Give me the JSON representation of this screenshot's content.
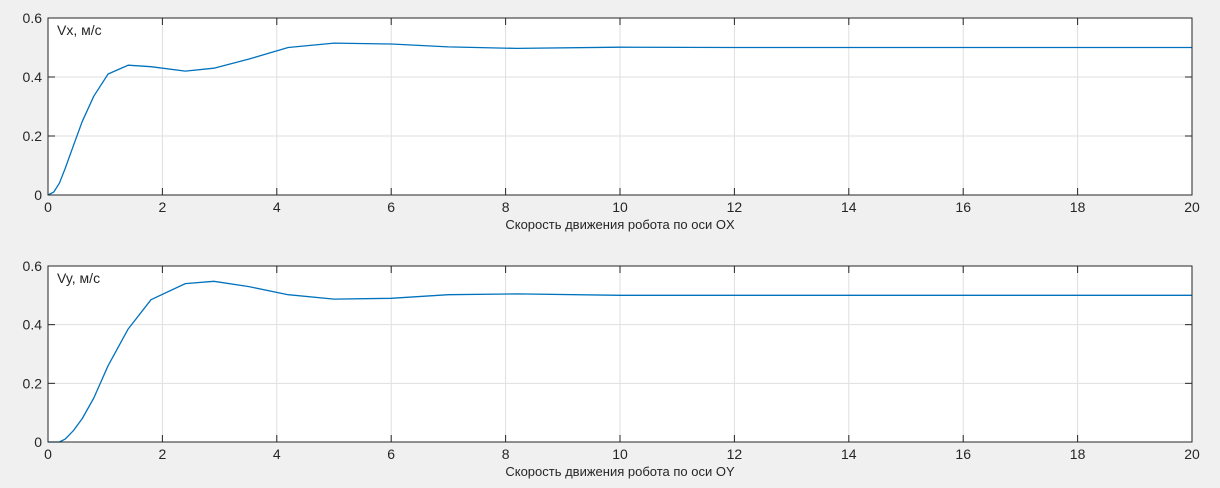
{
  "chart_data": [
    {
      "type": "line",
      "title": "",
      "xlabel": "Скорость движения робота по оси OX",
      "ylabel": "",
      "annotation": "Vx, м/с",
      "xlim": [
        0,
        20
      ],
      "ylim": [
        0,
        0.6
      ],
      "xticks": [
        0,
        2,
        4,
        6,
        8,
        10,
        12,
        14,
        16,
        18,
        20
      ],
      "yticks": [
        0,
        0.2,
        0.4,
        0.6
      ],
      "xtick_labels": [
        "0",
        "2",
        "4",
        "6",
        "8",
        "10",
        "12",
        "14",
        "16",
        "18",
        "20"
      ],
      "ytick_labels": [
        "0",
        "0.2",
        "0.4",
        "0.6"
      ],
      "grid": true,
      "line_color": "#0072bd",
      "series": [
        {
          "x": [
            0,
            0.1,
            0.2,
            0.3,
            0.45,
            0.6,
            0.8,
            1.05,
            1.4,
            1.8,
            2.4,
            2.9,
            3.5,
            4.2,
            5.0,
            6.0,
            7.0,
            8.2,
            10.0,
            12.0,
            15.0,
            20.0
          ],
          "y": [
            0,
            0.01,
            0.04,
            0.09,
            0.17,
            0.25,
            0.335,
            0.41,
            0.44,
            0.435,
            0.42,
            0.43,
            0.46,
            0.5,
            0.515,
            0.512,
            0.502,
            0.497,
            0.501,
            0.5,
            0.5,
            0.5
          ]
        }
      ]
    },
    {
      "type": "line",
      "title": "",
      "xlabel": "Скорость движения робота по оси OY",
      "ylabel": "",
      "annotation": "Vy, м/с",
      "xlim": [
        0,
        20
      ],
      "ylim": [
        0,
        0.6
      ],
      "xticks": [
        0,
        2,
        4,
        6,
        8,
        10,
        12,
        14,
        16,
        18,
        20
      ],
      "yticks": [
        0,
        0.2,
        0.4,
        0.6
      ],
      "xtick_labels": [
        "0",
        "2",
        "4",
        "6",
        "8",
        "10",
        "12",
        "14",
        "16",
        "18",
        "20"
      ],
      "ytick_labels": [
        "0",
        "0.2",
        "0.4",
        "0.6"
      ],
      "grid": true,
      "line_color": "#0072bd",
      "series": [
        {
          "x": [
            0,
            0.2,
            0.3,
            0.45,
            0.6,
            0.8,
            1.05,
            1.4,
            1.8,
            2.4,
            2.9,
            3.5,
            4.2,
            5.0,
            6.0,
            7.0,
            8.2,
            10.0,
            12.0,
            15.0,
            20.0
          ],
          "y": [
            0,
            0,
            0.01,
            0.04,
            0.08,
            0.15,
            0.26,
            0.385,
            0.485,
            0.54,
            0.548,
            0.53,
            0.502,
            0.487,
            0.49,
            0.502,
            0.505,
            0.5,
            0.5,
            0.5,
            0.5
          ]
        }
      ]
    }
  ]
}
